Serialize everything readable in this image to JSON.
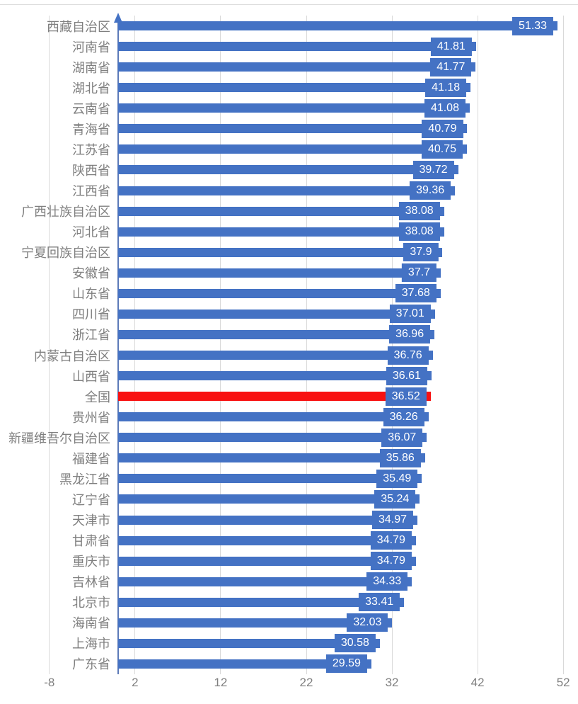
{
  "chart_data": {
    "type": "bar",
    "orientation": "horizontal",
    "title": "",
    "xlabel": "",
    "ylabel": "",
    "grid": true,
    "legend": "none",
    "value_labels_shown": true,
    "xlim": [
      -8,
      52
    ],
    "x_ticks": [
      -8,
      2,
      12,
      22,
      32,
      42,
      52
    ],
    "categories": [
      "西藏自治区",
      "河南省",
      "湖南省",
      "湖北省",
      "云南省",
      "青海省",
      "江苏省",
      "陕西省",
      "江西省",
      "广西壮族自治区",
      "河北省",
      "宁夏回族自治区",
      "安徽省",
      "山东省",
      "四川省",
      "浙江省",
      "内蒙古自治区",
      "山西省",
      "全国",
      "贵州省",
      "新疆维吾尔自治区",
      "福建省",
      "黑龙江省",
      "辽宁省",
      "天津市",
      "甘肃省",
      "重庆市",
      "吉林省",
      "北京市",
      "海南省",
      "上海市",
      "广东省"
    ],
    "values": [
      51.33,
      41.81,
      41.77,
      41.18,
      41.08,
      40.79,
      40.75,
      39.72,
      39.36,
      38.08,
      38.08,
      37.9,
      37.7,
      37.68,
      37.01,
      36.96,
      36.76,
      36.61,
      36.52,
      36.26,
      36.07,
      35.86,
      35.49,
      35.24,
      34.97,
      34.79,
      34.79,
      34.33,
      33.41,
      32.03,
      30.58,
      29.59
    ],
    "highlight": {
      "category": "全国",
      "value": 36.52,
      "bar_color": "#f81111"
    },
    "colors": {
      "bar": "#4472c4",
      "value_label_background": "#4472c4",
      "value_label_text": "#ffffff",
      "category_label_text": "#7f7f7f",
      "tick_label_text": "#7f7f7f",
      "gridline": "#d9d9d9",
      "axis_line": "#5c7ab8",
      "axis_arrow": "#4472c4",
      "background": "#ffffff"
    }
  }
}
